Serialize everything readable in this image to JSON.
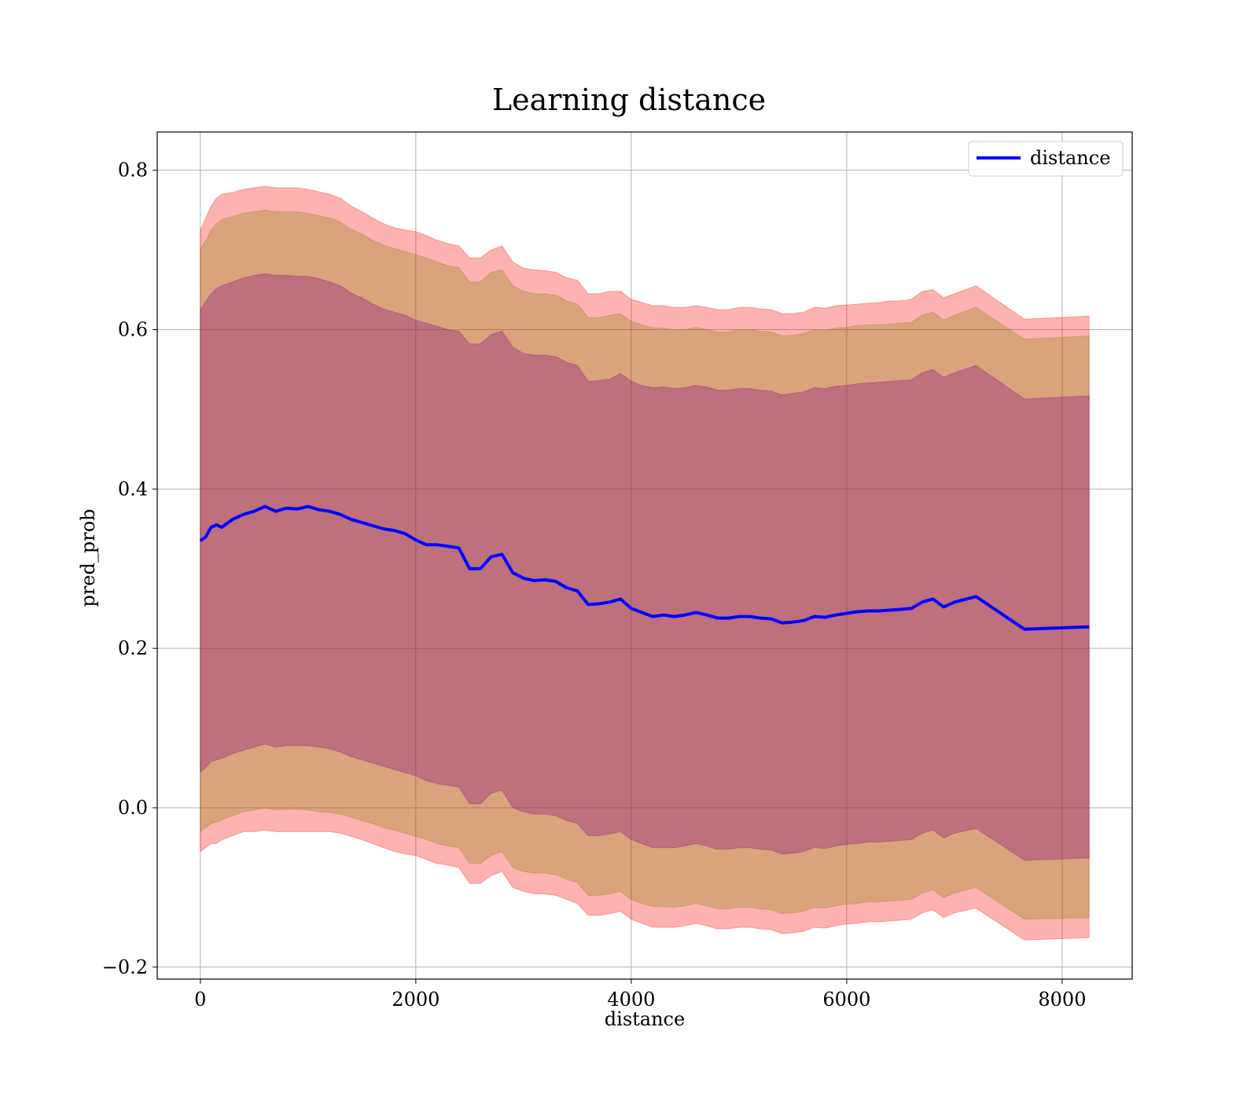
{
  "chart_data": {
    "type": "line",
    "title": "Learning distance",
    "xlabel": "distance",
    "ylabel": "pred_prob",
    "xlim": [
      -400,
      8650
    ],
    "ylim": [
      -0.215,
      0.848
    ],
    "xticks": [
      0,
      2000,
      4000,
      6000,
      8000
    ],
    "xtick_labels": [
      "0",
      "2000",
      "4000",
      "6000",
      "8000"
    ],
    "yticks": [
      -0.2,
      0.0,
      0.2,
      0.4,
      0.6,
      0.8
    ],
    "ytick_labels": [
      "−0.2",
      "0.0",
      "0.2",
      "0.4",
      "0.6",
      "0.8"
    ],
    "grid": true,
    "legend": {
      "placement": "top-right",
      "entries": [
        "distance"
      ]
    },
    "colors": {
      "line": "#0000ff",
      "band_outer": "#ff0000",
      "band_middle": "#808000",
      "band_inner": "#800080",
      "grid": "#b0b0b0"
    },
    "series": [
      {
        "name": "distance",
        "x": [
          0,
          50,
          100,
          150,
          200,
          300,
          400,
          500,
          600,
          700,
          800,
          900,
          1000,
          1100,
          1200,
          1300,
          1400,
          1500,
          1600,
          1700,
          1800,
          1900,
          2000,
          2100,
          2200,
          2300,
          2400,
          2500,
          2600,
          2700,
          2800,
          2900,
          3000,
          3100,
          3200,
          3300,
          3400,
          3500,
          3600,
          3700,
          3800,
          3900,
          4000,
          4100,
          4200,
          4300,
          4400,
          4500,
          4600,
          4700,
          4800,
          4900,
          5000,
          5100,
          5200,
          5300,
          5400,
          5500,
          5600,
          5700,
          5800,
          5900,
          6000,
          6100,
          6200,
          6300,
          6400,
          6500,
          6600,
          6700,
          6800,
          6900,
          7000,
          7200,
          7650,
          8250
        ],
        "y": [
          0.335,
          0.34,
          0.352,
          0.355,
          0.352,
          0.362,
          0.368,
          0.372,
          0.378,
          0.372,
          0.376,
          0.375,
          0.378,
          0.374,
          0.372,
          0.368,
          0.362,
          0.358,
          0.354,
          0.35,
          0.348,
          0.344,
          0.336,
          0.33,
          0.33,
          0.328,
          0.326,
          0.3,
          0.3,
          0.315,
          0.318,
          0.295,
          0.288,
          0.285,
          0.286,
          0.284,
          0.276,
          0.272,
          0.255,
          0.256,
          0.258,
          0.262,
          0.25,
          0.245,
          0.24,
          0.242,
          0.24,
          0.242,
          0.245,
          0.242,
          0.238,
          0.238,
          0.24,
          0.24,
          0.238,
          0.237,
          0.232,
          0.233,
          0.235,
          0.24,
          0.239,
          0.242,
          0.244,
          0.246,
          0.247,
          0.247,
          0.248,
          0.249,
          0.25,
          0.258,
          0.262,
          0.252,
          0.258,
          0.265,
          0.224,
          0.227
        ],
        "band_outer_upper": [
          0.725,
          0.74,
          0.755,
          0.765,
          0.77,
          0.772,
          0.776,
          0.778,
          0.78,
          0.778,
          0.778,
          0.778,
          0.776,
          0.773,
          0.77,
          0.765,
          0.755,
          0.748,
          0.74,
          0.733,
          0.728,
          0.725,
          0.723,
          0.718,
          0.712,
          0.708,
          0.705,
          0.69,
          0.69,
          0.7,
          0.705,
          0.685,
          0.677,
          0.675,
          0.674,
          0.672,
          0.665,
          0.662,
          0.645,
          0.645,
          0.648,
          0.648,
          0.638,
          0.634,
          0.63,
          0.63,
          0.628,
          0.628,
          0.63,
          0.628,
          0.625,
          0.625,
          0.628,
          0.628,
          0.626,
          0.625,
          0.62,
          0.62,
          0.622,
          0.628,
          0.627,
          0.63,
          0.631,
          0.632,
          0.633,
          0.634,
          0.636,
          0.636,
          0.638,
          0.648,
          0.65,
          0.64,
          0.645,
          0.655,
          0.613,
          0.617
        ],
        "band_outer_lower": [
          -0.055,
          -0.05,
          -0.045,
          -0.045,
          -0.04,
          -0.035,
          -0.03,
          -0.03,
          -0.028,
          -0.03,
          -0.03,
          -0.03,
          -0.03,
          -0.03,
          -0.03,
          -0.032,
          -0.036,
          -0.04,
          -0.045,
          -0.05,
          -0.055,
          -0.058,
          -0.06,
          -0.065,
          -0.07,
          -0.072,
          -0.075,
          -0.095,
          -0.095,
          -0.085,
          -0.08,
          -0.1,
          -0.105,
          -0.108,
          -0.108,
          -0.11,
          -0.115,
          -0.12,
          -0.135,
          -0.135,
          -0.133,
          -0.13,
          -0.14,
          -0.145,
          -0.15,
          -0.15,
          -0.15,
          -0.148,
          -0.145,
          -0.148,
          -0.152,
          -0.152,
          -0.15,
          -0.15,
          -0.152,
          -0.153,
          -0.158,
          -0.157,
          -0.155,
          -0.15,
          -0.151,
          -0.148,
          -0.146,
          -0.145,
          -0.143,
          -0.143,
          -0.142,
          -0.141,
          -0.14,
          -0.132,
          -0.128,
          -0.138,
          -0.132,
          -0.126,
          -0.166,
          -0.163
        ],
        "band_middle_upper": [
          0.7,
          0.712,
          0.725,
          0.733,
          0.738,
          0.742,
          0.746,
          0.748,
          0.75,
          0.748,
          0.748,
          0.748,
          0.746,
          0.743,
          0.74,
          0.735,
          0.726,
          0.72,
          0.712,
          0.706,
          0.702,
          0.698,
          0.694,
          0.69,
          0.685,
          0.68,
          0.678,
          0.66,
          0.66,
          0.672,
          0.675,
          0.655,
          0.648,
          0.645,
          0.645,
          0.643,
          0.636,
          0.632,
          0.615,
          0.615,
          0.618,
          0.62,
          0.61,
          0.606,
          0.602,
          0.602,
          0.6,
          0.6,
          0.603,
          0.6,
          0.597,
          0.597,
          0.6,
          0.6,
          0.598,
          0.597,
          0.592,
          0.593,
          0.595,
          0.6,
          0.599,
          0.602,
          0.603,
          0.605,
          0.606,
          0.606,
          0.607,
          0.608,
          0.609,
          0.618,
          0.622,
          0.612,
          0.618,
          0.628,
          0.588,
          0.592
        ],
        "band_middle_lower": [
          -0.03,
          -0.025,
          -0.02,
          -0.018,
          -0.015,
          -0.01,
          -0.005,
          -0.003,
          0.0,
          -0.003,
          -0.002,
          -0.002,
          -0.003,
          -0.005,
          -0.006,
          -0.008,
          -0.012,
          -0.016,
          -0.02,
          -0.025,
          -0.028,
          -0.032,
          -0.036,
          -0.04,
          -0.045,
          -0.048,
          -0.05,
          -0.07,
          -0.07,
          -0.06,
          -0.055,
          -0.075,
          -0.08,
          -0.082,
          -0.082,
          -0.084,
          -0.09,
          -0.094,
          -0.11,
          -0.11,
          -0.108,
          -0.105,
          -0.115,
          -0.12,
          -0.124,
          -0.124,
          -0.125,
          -0.123,
          -0.12,
          -0.123,
          -0.127,
          -0.127,
          -0.125,
          -0.125,
          -0.127,
          -0.128,
          -0.133,
          -0.132,
          -0.13,
          -0.125,
          -0.126,
          -0.123,
          -0.121,
          -0.12,
          -0.118,
          -0.118,
          -0.117,
          -0.116,
          -0.115,
          -0.107,
          -0.103,
          -0.113,
          -0.107,
          -0.1,
          -0.14,
          -0.138
        ],
        "band_inner_upper": [
          0.625,
          0.635,
          0.645,
          0.652,
          0.655,
          0.66,
          0.665,
          0.668,
          0.67,
          0.668,
          0.668,
          0.667,
          0.667,
          0.664,
          0.66,
          0.655,
          0.646,
          0.64,
          0.632,
          0.626,
          0.622,
          0.618,
          0.612,
          0.608,
          0.604,
          0.6,
          0.598,
          0.582,
          0.582,
          0.594,
          0.598,
          0.578,
          0.57,
          0.568,
          0.568,
          0.566,
          0.559,
          0.555,
          0.535,
          0.536,
          0.538,
          0.545,
          0.535,
          0.53,
          0.527,
          0.528,
          0.526,
          0.527,
          0.53,
          0.528,
          0.524,
          0.524,
          0.526,
          0.526,
          0.524,
          0.523,
          0.518,
          0.52,
          0.522,
          0.527,
          0.526,
          0.529,
          0.53,
          0.532,
          0.533,
          0.534,
          0.535,
          0.536,
          0.537,
          0.546,
          0.55,
          0.54,
          0.546,
          0.555,
          0.513,
          0.517
        ],
        "band_inner_lower": [
          0.045,
          0.05,
          0.058,
          0.06,
          0.062,
          0.068,
          0.072,
          0.076,
          0.08,
          0.076,
          0.078,
          0.078,
          0.078,
          0.076,
          0.074,
          0.07,
          0.064,
          0.06,
          0.056,
          0.052,
          0.048,
          0.044,
          0.04,
          0.034,
          0.03,
          0.028,
          0.026,
          0.005,
          0.005,
          0.018,
          0.022,
          0.0,
          -0.005,
          -0.008,
          -0.008,
          -0.01,
          -0.016,
          -0.02,
          -0.035,
          -0.035,
          -0.033,
          -0.03,
          -0.04,
          -0.045,
          -0.05,
          -0.05,
          -0.05,
          -0.048,
          -0.045,
          -0.048,
          -0.052,
          -0.052,
          -0.05,
          -0.05,
          -0.052,
          -0.053,
          -0.058,
          -0.057,
          -0.055,
          -0.05,
          -0.051,
          -0.048,
          -0.046,
          -0.045,
          -0.043,
          -0.043,
          -0.042,
          -0.041,
          -0.04,
          -0.032,
          -0.028,
          -0.038,
          -0.032,
          -0.026,
          -0.066,
          -0.063
        ]
      }
    ]
  }
}
